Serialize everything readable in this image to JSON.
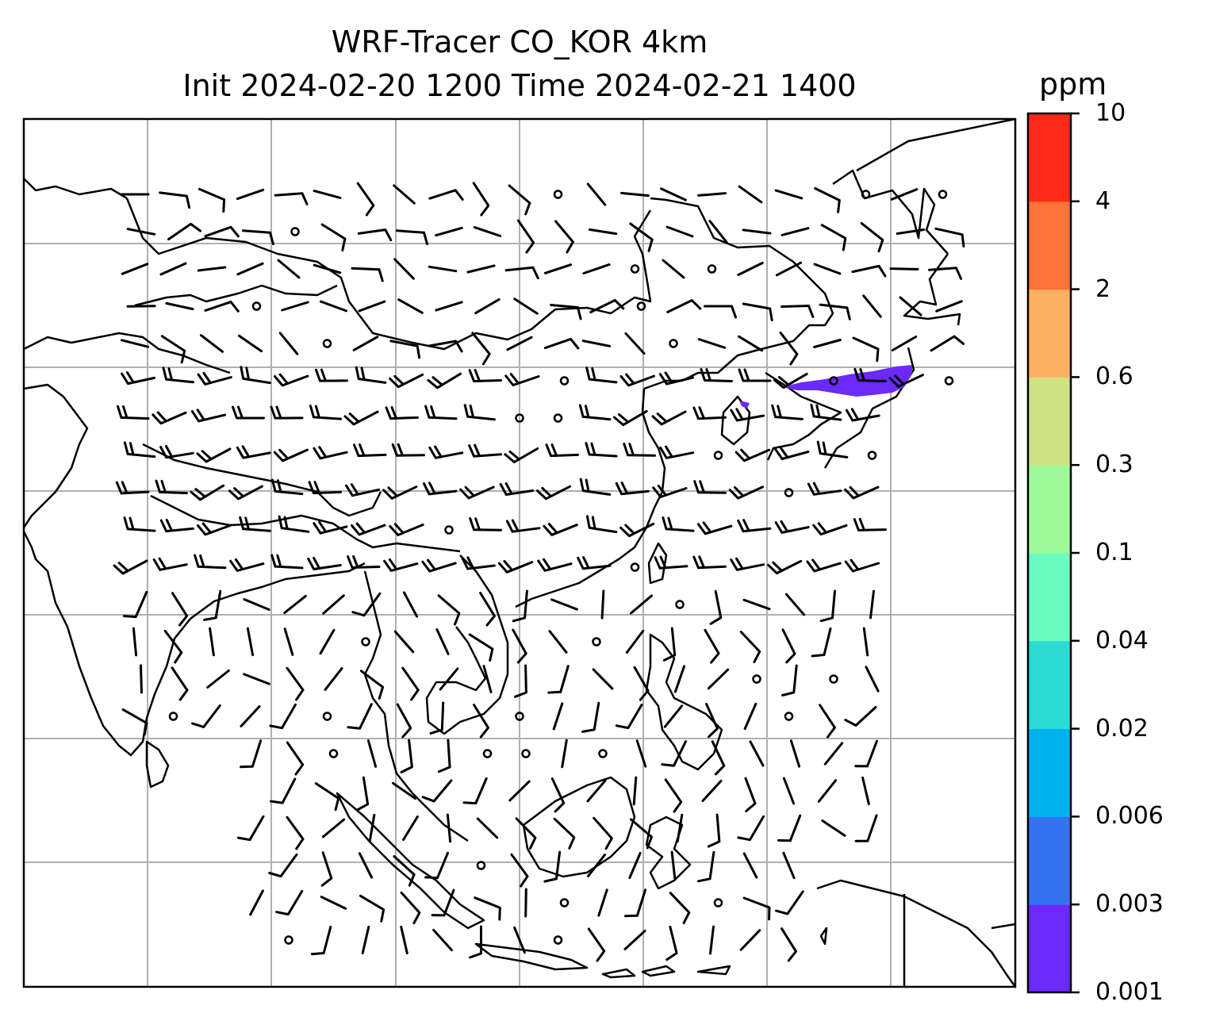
{
  "title_line1": "WRF-Tracer CO_KOR 4km",
  "title_line2": "Init 2024-02-20 1200 Time 2024-02-21 1400",
  "colorbar": {
    "unit": "ppm",
    "levels": [
      "0.001",
      "0.003",
      "0.006",
      "0.02",
      "0.04",
      "0.1",
      "0.3",
      "0.6",
      "2",
      "4",
      "10"
    ],
    "colors": [
      "#6b2afa",
      "#3373f2",
      "#00b2ee",
      "#2cdcd4",
      "#6afbc0",
      "#9cfb98",
      "#cfe284",
      "#fcb062",
      "#fd743b",
      "#fc2a18"
    ]
  },
  "plume": {
    "color": "#6b2afa",
    "region": "over Korea / East Sea"
  },
  "grid": {
    "shown": true,
    "color": "#b0b0b0"
  }
}
